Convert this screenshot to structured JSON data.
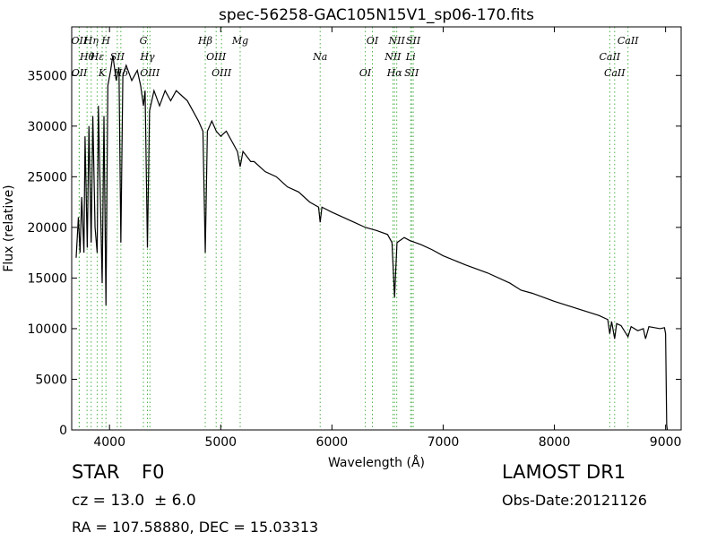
{
  "chart_data": {
    "type": "line",
    "title": "spec-56258-GAC105N15V1_sp06-170.fits",
    "xlabel": "Wavelength (Å)",
    "ylabel": "Flux (relative)",
    "xlim": [
      3660,
      9140
    ],
    "xticks": [
      4000,
      5000,
      6000,
      7000,
      8000,
      9000
    ],
    "ylim": [
      0,
      39800
    ],
    "yticks": [
      0,
      5000,
      10000,
      15000,
      20000,
      25000,
      30000,
      35000
    ],
    "color": "#000000",
    "line_color": "#4daf4a",
    "x": [
      3700,
      3720,
      3735,
      3750,
      3770,
      3780,
      3800,
      3815,
      3835,
      3850,
      3870,
      3889,
      3900,
      3934,
      3950,
      3968,
      3985,
      4010,
      4030,
      4060,
      4085,
      4102,
      4120,
      4150,
      4200,
      4250,
      4280,
      4305,
      4320,
      4341,
      4360,
      4400,
      4450,
      4500,
      4550,
      4600,
      4650,
      4700,
      4750,
      4800,
      4840,
      4861,
      4880,
      4920,
      4960,
      5000,
      5050,
      5100,
      5150,
      5175,
      5200,
      5270,
      5300,
      5400,
      5500,
      5600,
      5700,
      5800,
      5880,
      5894,
      5910,
      6000,
      6100,
      6200,
      6300,
      6400,
      6500,
      6540,
      6563,
      6585,
      6650,
      6700,
      6800,
      6900,
      7000,
      7200,
      7400,
      7600,
      7700,
      7800,
      8000,
      8200,
      8400,
      8480,
      8498,
      8515,
      8542,
      8560,
      8600,
      8662,
      8690,
      8750,
      8800,
      8820,
      8850,
      8950,
      8990,
      9000,
      9010,
      9015
    ],
    "values": [
      17000,
      21000,
      17500,
      23000,
      17500,
      29000,
      18000,
      30000,
      18500,
      31000,
      20000,
      17500,
      32000,
      14500,
      31000,
      12300,
      34000,
      35500,
      37000,
      34500,
      35800,
      18500,
      35000,
      36000,
      34500,
      35500,
      34000,
      32000,
      33500,
      18000,
      31500,
      33500,
      32000,
      33500,
      32500,
      33500,
      33000,
      32500,
      31500,
      30500,
      29500,
      17500,
      29500,
      30500,
      29500,
      29000,
      29500,
      28500,
      27500,
      26000,
      27500,
      26500,
      26500,
      25500,
      25000,
      24000,
      23500,
      22500,
      22000,
      20500,
      22000,
      21500,
      21000,
      20500,
      20000,
      19700,
      19300,
      18500,
      13100,
      18500,
      19000,
      18700,
      18300,
      17800,
      17200,
      16300,
      15500,
      14500,
      13800,
      13500,
      12700,
      12000,
      11300,
      10900,
      9500,
      10700,
      9000,
      10500,
      10300,
      9200,
      10200,
      9800,
      10000,
      9000,
      10200,
      10000,
      10100,
      9500,
      500,
      0
    ],
    "lines": [
      {
        "label": "OII",
        "x": 3727
      },
      {
        "label": "Hθ",
        "x": 3798
      },
      {
        "label": "OII",
        "x": 3729
      },
      {
        "label": "Hη",
        "x": 3835
      },
      {
        "label": "Hε",
        "x": 3889
      },
      {
        "label": "K",
        "x": 3934
      },
      {
        "label": "H",
        "x": 3968
      },
      {
        "label": "SII",
        "x": 4070
      },
      {
        "label": "Hδ",
        "x": 4102
      },
      {
        "label": "G",
        "x": 4305
      },
      {
        "label": "Hγ",
        "x": 4341
      },
      {
        "label": "OIII",
        "x": 4363
      },
      {
        "label": "Hβ",
        "x": 4861
      },
      {
        "label": "OIII",
        "x": 4959
      },
      {
        "label": "OIII",
        "x": 5007
      },
      {
        "label": "Mg",
        "x": 5175
      },
      {
        "label": "Na",
        "x": 5894
      },
      {
        "label": "OI",
        "x": 6300
      },
      {
        "label": "OI",
        "x": 6364
      },
      {
        "label": "NII",
        "x": 6548
      },
      {
        "label": "Hα",
        "x": 6563
      },
      {
        "label": "NII",
        "x": 6583
      },
      {
        "label": "Li",
        "x": 6708
      },
      {
        "label": "SII",
        "x": 6716
      },
      {
        "label": "SII",
        "x": 6731
      },
      {
        "label": "CaII",
        "x": 8498
      },
      {
        "label": "CaII",
        "x": 8542
      },
      {
        "label": "CaII",
        "x": 8662
      }
    ],
    "object_class": "STAR",
    "subclass": "F0",
    "survey": "LAMOST DR1",
    "cz": "cz = 13.0  ± 6.0",
    "obs_date": "Obs-Date:20121126",
    "coords": "RA = 107.58880, DEC = 15.03313"
  }
}
